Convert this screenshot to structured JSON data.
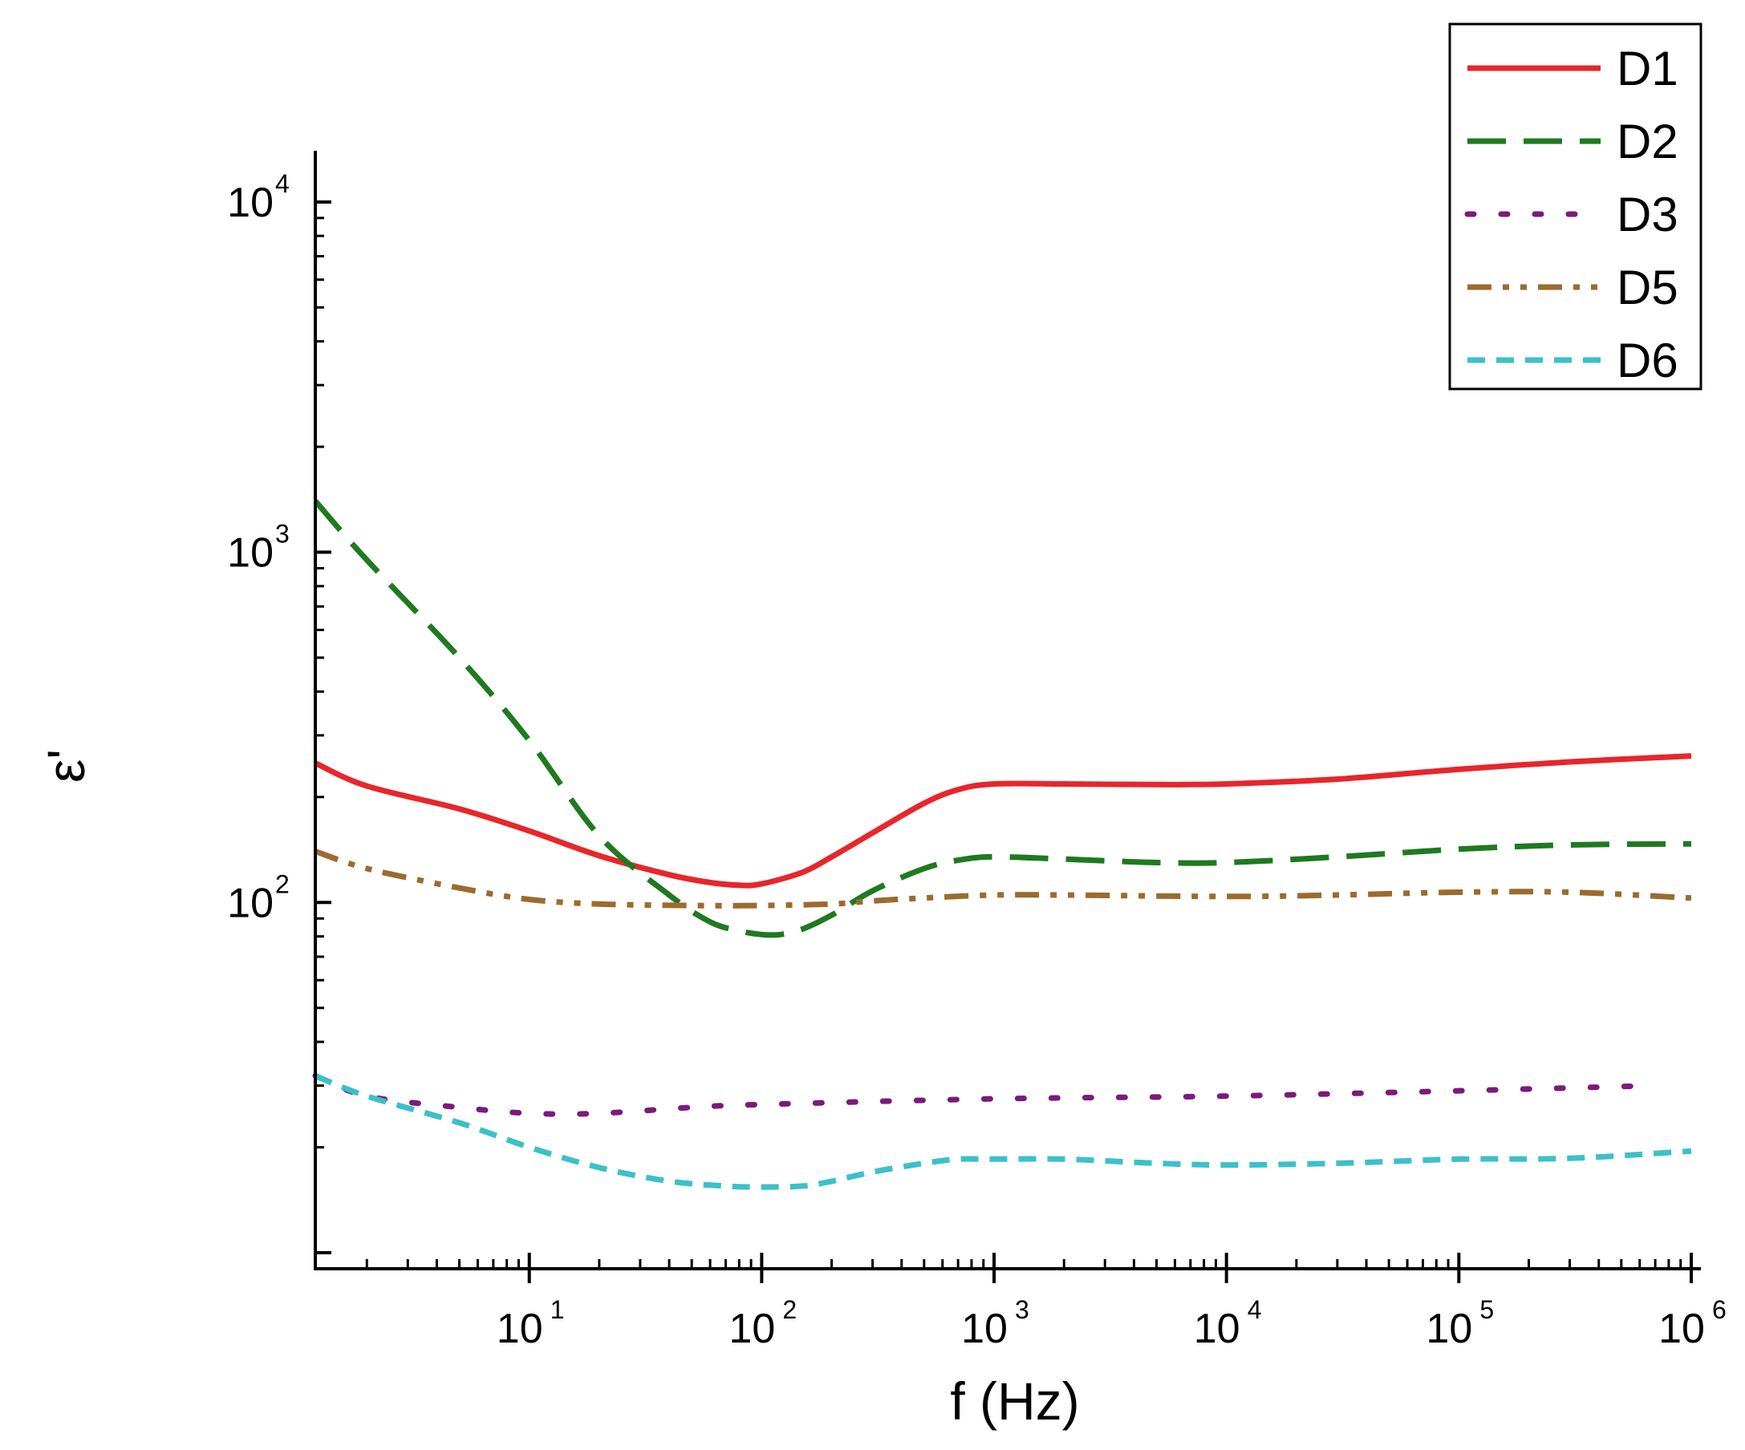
{
  "chart_data": {
    "type": "line",
    "title": "",
    "xlabel": "f (Hz)",
    "ylabel": "ε'",
    "x_scale": "log",
    "y_scale": "log",
    "xlim": [
      1.2,
      1000000
    ],
    "ylim": [
      9,
      14000
    ],
    "x_ticks": [
      {
        "base": "10",
        "exp": "1",
        "value": 10
      },
      {
        "base": "10",
        "exp": "2",
        "value": 100
      },
      {
        "base": "10",
        "exp": "3",
        "value": 1000
      },
      {
        "base": "10",
        "exp": "4",
        "value": 10000
      },
      {
        "base": "10",
        "exp": "5",
        "value": 100000
      },
      {
        "base": "10",
        "exp": "6",
        "value": 1000000
      }
    ],
    "y_ticks": [
      {
        "base": "10",
        "exp": "2",
        "value": 100
      },
      {
        "base": "10",
        "exp": "3",
        "value": 1000
      },
      {
        "base": "10",
        "exp": "4",
        "value": 10000
      }
    ],
    "grid": false,
    "legend_position": "top-right",
    "series": [
      {
        "name": "D1",
        "color": "#e8262b",
        "dash": "solid",
        "x": [
          1.2,
          2,
          5,
          10,
          20,
          40,
          60,
          80,
          100,
          150,
          200,
          300,
          500,
          700,
          1000,
          2000,
          5000,
          10000,
          30000,
          100000,
          300000,
          1000000
        ],
        "y": [
          250,
          215,
          185,
          160,
          136,
          120,
          114,
          112,
          113,
          122,
          135,
          158,
          192,
          210,
          218,
          218,
          217,
          218,
          225,
          240,
          252,
          262
        ]
      },
      {
        "name": "D2",
        "color": "#1f7a1f",
        "dash": "long-dash",
        "x": [
          1.2,
          2,
          5,
          10,
          20,
          40,
          60,
          80,
          100,
          120,
          150,
          200,
          300,
          500,
          700,
          1000,
          2000,
          5000,
          10000,
          30000,
          100000,
          300000,
          1000000
        ],
        "y": [
          1400,
          950,
          500,
          290,
          155,
          105,
          88,
          83,
          81,
          81,
          84,
          92,
          108,
          125,
          132,
          135,
          133,
          130,
          130,
          135,
          142,
          146,
          147
        ]
      },
      {
        "name": "D3",
        "color": "#7b1a7b",
        "dash": "dotted",
        "x": [
          1.2,
          2,
          5,
          10,
          20,
          50,
          100,
          1000,
          10000,
          100000,
          700000
        ],
        "y": [
          32,
          28,
          26,
          25,
          25,
          26,
          26.5,
          27.5,
          28,
          29,
          30
        ]
      },
      {
        "name": "D5",
        "color": "#9b6b2e",
        "dash": "dash-dot-dot",
        "x": [
          1.2,
          2,
          5,
          10,
          20,
          50,
          100,
          200,
          300,
          500,
          1000,
          2000,
          10000,
          30000,
          100000,
          300000,
          1000000
        ],
        "y": [
          140,
          125,
          110,
          102,
          99,
          98,
          98,
          99,
          101,
          103,
          105,
          105,
          104,
          105,
          107,
          107,
          103
        ]
      },
      {
        "name": "D6",
        "color": "#3cc0c8",
        "dash": "short-dash",
        "x": [
          1.2,
          2,
          5,
          10,
          20,
          40,
          70,
          100,
          150,
          200,
          300,
          500,
          700,
          1000,
          2000,
          5000,
          10000,
          30000,
          100000,
          300000,
          1000000
        ],
        "y": [
          32,
          28,
          23.5,
          20,
          17.5,
          16,
          15.5,
          15.4,
          15.5,
          16,
          17,
          18,
          18.5,
          18.5,
          18.5,
          18,
          17.8,
          18,
          18.5,
          18.6,
          19.5
        ]
      }
    ]
  }
}
